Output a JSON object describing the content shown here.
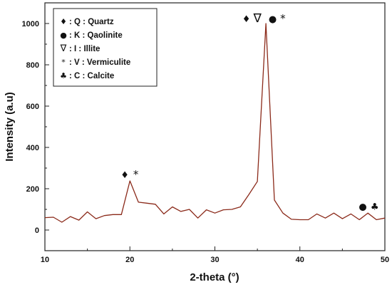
{
  "chart_data": {
    "type": "line",
    "xlabel": "2-theta (°)",
    "ylabel": "Intensity (a.u)",
    "xlim": [
      10,
      50
    ],
    "ylim": [
      -100,
      1100
    ],
    "x_ticks": [
      10,
      20,
      30,
      40,
      50
    ],
    "y_ticks": [
      0,
      200,
      400,
      600,
      800,
      1000
    ],
    "grid": false,
    "legend_position": "top-left",
    "series": [
      {
        "color": "#8b2a1a",
        "x": [
          10,
          11,
          12,
          13,
          14,
          15,
          16,
          17,
          18,
          19,
          20,
          21,
          22,
          23,
          24,
          25,
          26,
          27,
          28,
          29,
          30,
          31,
          32,
          33,
          34,
          35,
          36,
          37,
          38,
          39,
          40,
          41,
          42,
          43,
          44,
          45,
          46,
          47,
          48,
          49,
          50
        ],
        "y": [
          60,
          62,
          38,
          65,
          48,
          88,
          55,
          70,
          75,
          75,
          238,
          135,
          130,
          125,
          78,
          112,
          90,
          100,
          58,
          98,
          82,
          98,
          100,
          112,
          172,
          235,
          1000,
          145,
          82,
          52,
          50,
          50,
          78,
          58,
          82,
          55,
          78,
          50,
          82,
          50,
          58
        ]
      }
    ],
    "legend": [
      {
        "symbol": "♦",
        "text": ": Q : Quartz"
      },
      {
        "symbol": "●",
        "text": ": K : Qaolinite"
      },
      {
        "symbol": "∇",
        "text": ": I : Illite"
      },
      {
        "symbol": "*",
        "text": ": V : Vermiculite"
      },
      {
        "symbol": "♣",
        "text": ": C : Calcite"
      }
    ],
    "peak_annotations": [
      {
        "x": 19.4,
        "y": 265,
        "symbol": "♦"
      },
      {
        "x": 20.7,
        "y": 265,
        "symbol": "*"
      },
      {
        "x": 33.7,
        "y": 1020,
        "symbol": "♦"
      },
      {
        "x": 35.0,
        "y": 1020,
        "symbol": "∇"
      },
      {
        "x": 36.8,
        "y": 1020,
        "symbol": "●"
      },
      {
        "x": 38.0,
        "y": 1020,
        "symbol": "*"
      },
      {
        "x": 47.4,
        "y": 112,
        "symbol": "●"
      },
      {
        "x": 48.8,
        "y": 112,
        "symbol": "♣"
      }
    ]
  }
}
